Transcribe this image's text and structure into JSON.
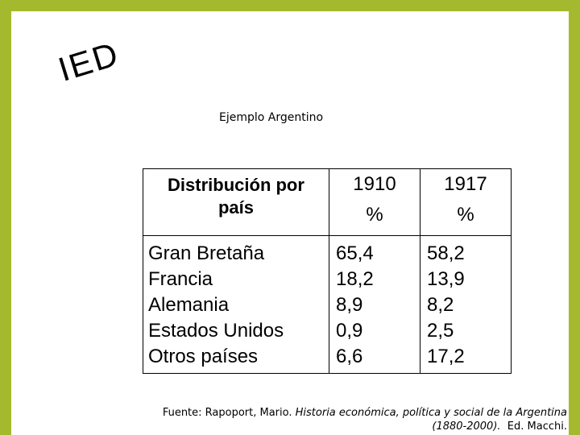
{
  "logo": "IED",
  "subtitle": "Ejemplo Argentino",
  "table": {
    "header": {
      "country_line1": "Distribución por",
      "country_line2": "país",
      "col1_year": "1910",
      "col1_unit": "%",
      "col2_year": "1917",
      "col2_unit": "%"
    },
    "rows": [
      {
        "country": "Gran Bretaña",
        "v1910": "65,4",
        "v1917": "58,2"
      },
      {
        "country": "Francia",
        "v1910": "18,2",
        "v1917": "13,9"
      },
      {
        "country": "Alemania",
        "v1910": "8,9",
        "v1917": "8,2"
      },
      {
        "country": "Estados Unidos",
        "v1910": "0,9",
        "v1917": "2,5"
      },
      {
        "country": "Otros países",
        "v1910": "6,6",
        "v1917": "17,2"
      }
    ]
  },
  "footnote": {
    "prefix": "Fuente: Rapoport, Mario.",
    "title": "Historia económica, política y social de la Argentina",
    "years": "(1880-2000).",
    "publisher": "Ed. Macchi."
  }
}
